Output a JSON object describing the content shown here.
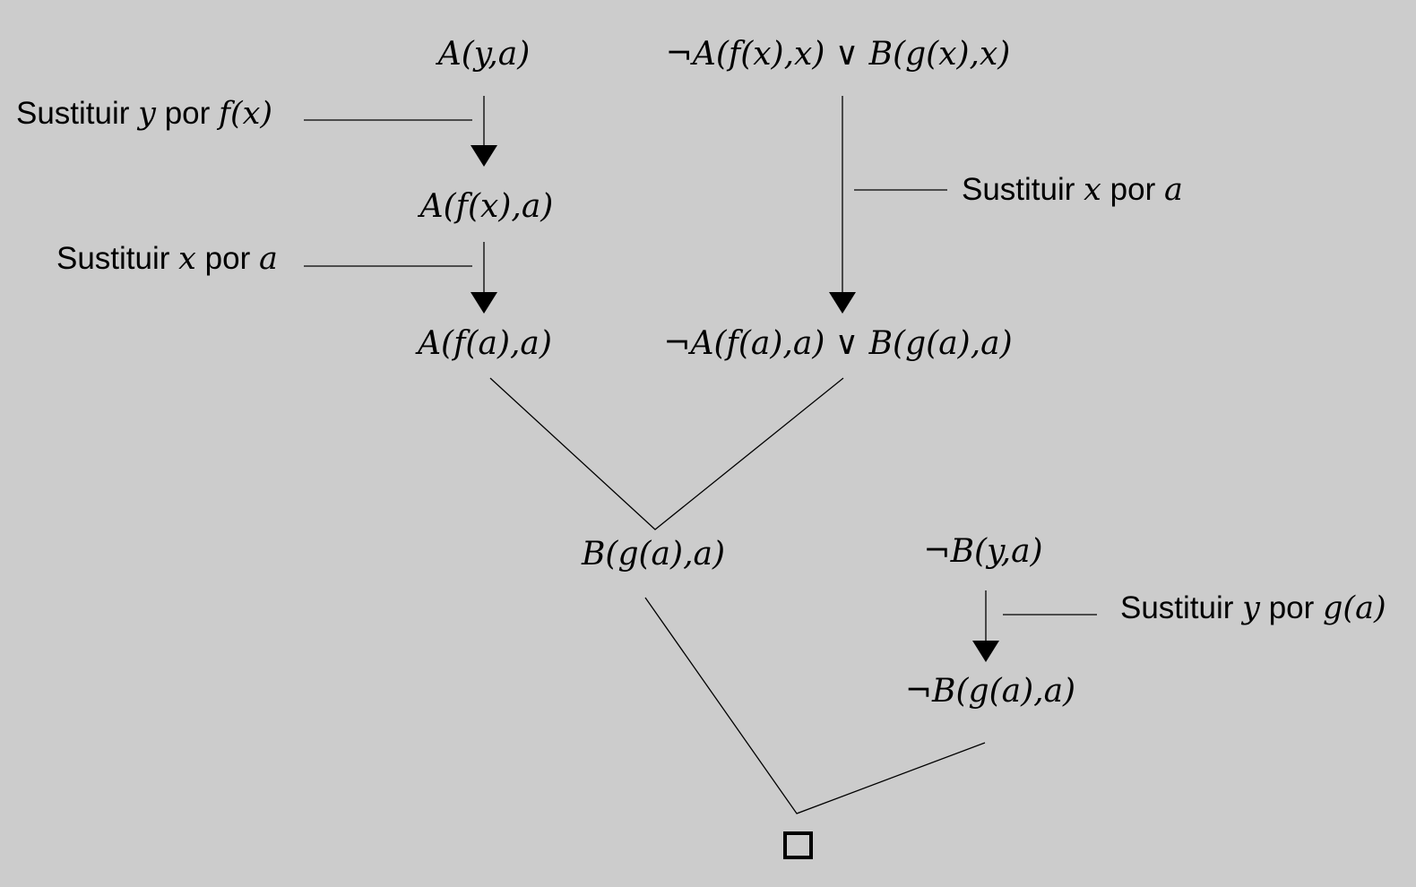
{
  "formulas": {
    "f1": "A(y,a)",
    "f2": "¬A(f(x),x) ∨ B(g(x),x)",
    "f3": "A(f(x),a)",
    "f4": "A(f(a),a)",
    "f5": "¬A(f(a),a) ∨ B(g(a),a)",
    "f6": "B(g(a),a)",
    "f7": "¬B(y,a)",
    "f8": "¬B(g(a),a)",
    "empty": "□"
  },
  "labels": {
    "s1": {
      "word": "Sustituir",
      "var": "y",
      "por": "por",
      "term": "f(x)"
    },
    "s2": {
      "word": "Sustituir",
      "var": "x",
      "por": "por",
      "term": "a"
    },
    "s3": {
      "word": "Sustituir",
      "var": "x",
      "por": "por",
      "term": "a"
    },
    "s4": {
      "word": "Sustituir",
      "var": "y",
      "por": "por",
      "term": "g(a)"
    }
  }
}
